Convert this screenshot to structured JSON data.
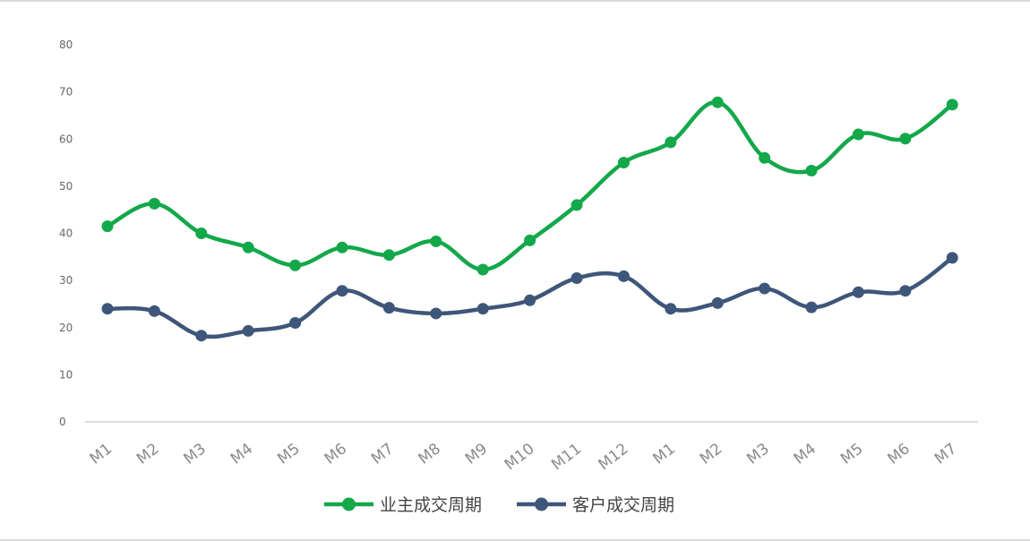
{
  "chart_data": {
    "type": "line",
    "categories": [
      "M1",
      "M2",
      "M3",
      "M4",
      "M5",
      "M6",
      "M7",
      "M8",
      "M9",
      "M10",
      "M11",
      "M12",
      "M1",
      "M2",
      "M3",
      "M4",
      "M5",
      "M6",
      "M7"
    ],
    "series": [
      {
        "name": "业主成交周期",
        "color": "#13a84a",
        "values": [
          41.5,
          46.3,
          40.0,
          37.0,
          33.2,
          37.0,
          35.4,
          38.3,
          32.3,
          38.5,
          46.0,
          55.0,
          59.3,
          67.8,
          56.0,
          53.3,
          61.0,
          60.1,
          67.3
        ]
      },
      {
        "name": "客户成交周期",
        "color": "#3e5679",
        "values": [
          24.0,
          23.5,
          18.3,
          19.3,
          21.0,
          27.8,
          24.2,
          23.0,
          24.0,
          25.8,
          30.5,
          30.9,
          24.0,
          25.2,
          28.3,
          24.3,
          27.5,
          27.8,
          34.8
        ]
      }
    ],
    "ylim": [
      0,
      80
    ],
    "yticks": [
      "0",
      "10",
      "20",
      "30",
      "40",
      "50",
      "60",
      "70",
      "80"
    ],
    "grid": false,
    "legend": "bottom-center",
    "title": "",
    "xlabel": "",
    "ylabel": ""
  }
}
